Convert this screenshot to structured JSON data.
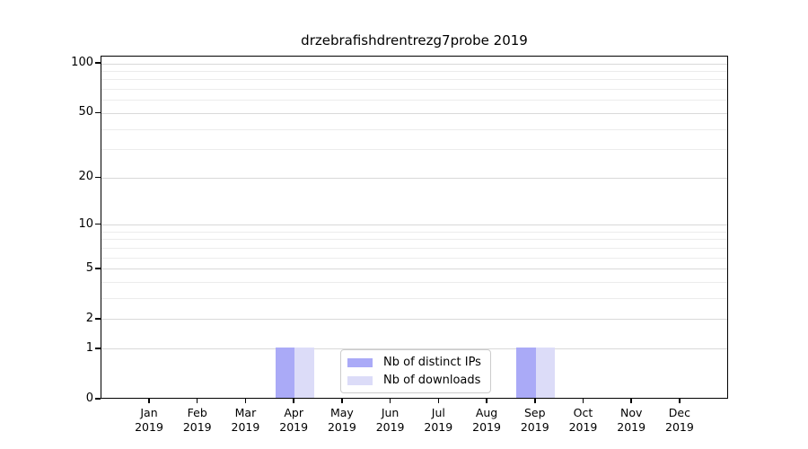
{
  "chart_data": {
    "type": "bar",
    "title": "drzebrafishdrentrezg7probe 2019",
    "categories": [
      "Jan 2019",
      "Feb 2019",
      "Mar 2019",
      "Apr 2019",
      "May 2019",
      "Jun 2019",
      "Jul 2019",
      "Aug 2019",
      "Sep 2019",
      "Oct 2019",
      "Nov 2019",
      "Dec 2019"
    ],
    "x_tick_labels": [
      [
        "Jan",
        "2019"
      ],
      [
        "Feb",
        "2019"
      ],
      [
        "Mar",
        "2019"
      ],
      [
        "Apr",
        "2019"
      ],
      [
        "May",
        "2019"
      ],
      [
        "Jun",
        "2019"
      ],
      [
        "Jul",
        "2019"
      ],
      [
        "Aug",
        "2019"
      ],
      [
        "Sep",
        "2019"
      ],
      [
        "Oct",
        "2019"
      ],
      [
        "Nov",
        "2019"
      ],
      [
        "Dec",
        "2019"
      ]
    ],
    "series": [
      {
        "name": "Nb of distinct IPs",
        "color": "#aaaaf7",
        "values": [
          0,
          0,
          0,
          1,
          0,
          0,
          0,
          0,
          1,
          0,
          0,
          0
        ]
      },
      {
        "name": "Nb of downloads",
        "color": "#dcdcf8",
        "values": [
          0,
          0,
          0,
          1,
          0,
          0,
          0,
          0,
          1,
          0,
          0,
          0
        ]
      }
    ],
    "yscale": "log1p",
    "ylim": [
      0,
      110.6
    ],
    "yticks": [
      0,
      1,
      2,
      5,
      10,
      20,
      50,
      100
    ],
    "yminorticks": [
      3,
      4,
      6,
      7,
      8,
      9,
      30,
      40,
      60,
      70,
      80,
      90
    ],
    "grid": "horizontal",
    "legend": {
      "position": "bottom-center-inside",
      "labels": [
        "Nb of distinct IPs",
        "Nb of downloads"
      ]
    }
  },
  "colors": {
    "grid_major": "#d9d9d9",
    "grid_minor": "#ececec",
    "axis": "#000000",
    "background": "#ffffff",
    "legend_border": "#cccccc"
  }
}
